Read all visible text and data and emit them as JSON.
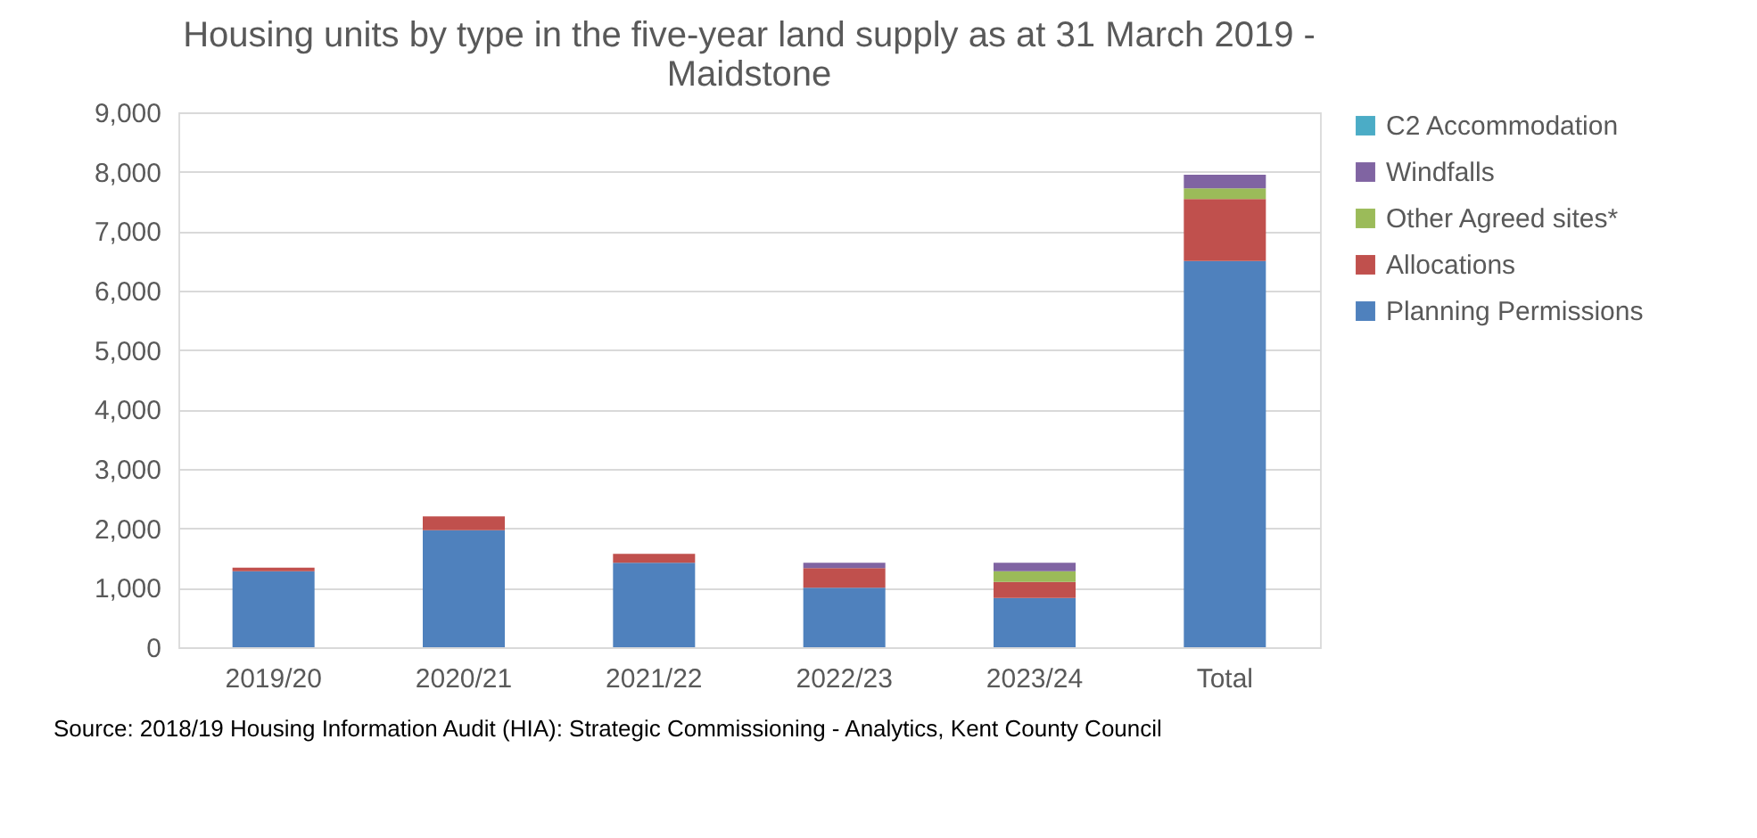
{
  "chart_data": {
    "type": "bar",
    "title": "Housing units by type in the five-year land supply as at 31 March 2019 - Maidstone",
    "categories": [
      "2019/20",
      "2020/21",
      "2021/22",
      "2022/23",
      "2023/24",
      "Total"
    ],
    "stacked": true,
    "series": [
      {
        "name": "Planning Permissions",
        "color": "#4f81bd",
        "values": [
          1280,
          1970,
          1420,
          1000,
          830,
          6500
        ]
      },
      {
        "name": "Allocations",
        "color": "#c0504d",
        "values": [
          60,
          230,
          150,
          330,
          270,
          1040
        ]
      },
      {
        "name": "Other Agreed sites*",
        "color": "#9bbb59",
        "values": [
          0,
          0,
          0,
          0,
          180,
          180
        ]
      },
      {
        "name": "Windfalls",
        "color": "#8064a2",
        "values": [
          0,
          0,
          0,
          90,
          140,
          230
        ]
      },
      {
        "name": "C2 Accommodation",
        "color": "#4bacc6",
        "values": [
          0,
          0,
          0,
          0,
          0,
          0
        ]
      }
    ],
    "ylim": [
      0,
      9000
    ],
    "yticks": [
      0,
      {
        "value": 1000,
        "label": "1,000"
      },
      {
        "value": 2000,
        "label": "2,000"
      },
      {
        "value": 3000,
        "label": "3,000"
      },
      {
        "value": 4000,
        "label": "4,000"
      },
      {
        "value": 5000,
        "label": "5,000"
      },
      {
        "value": 6000,
        "label": "6,000"
      },
      {
        "value": 7000,
        "label": "7,000"
      },
      {
        "value": 8000,
        "label": "8,000"
      },
      {
        "value": 9000,
        "label": "9,000"
      }
    ],
    "grid": "y",
    "legend": "right",
    "annotations": [
      "Source: 2018/19 Housing Information Audit (HIA): Strategic Commissioning - Analytics, Kent County Council"
    ]
  }
}
